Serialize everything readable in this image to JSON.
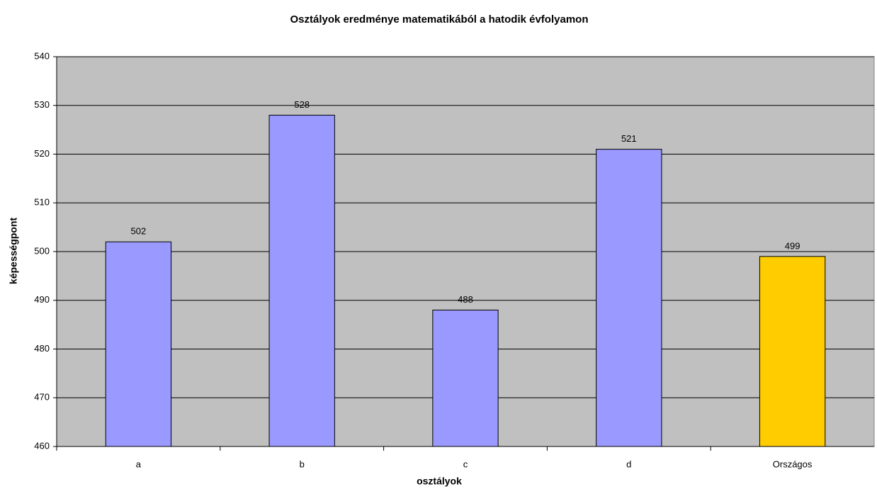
{
  "chart_data": {
    "type": "bar",
    "title": "Osztályok eredménye matematikából a hatodik évfolyamon",
    "x_label": "osztályok",
    "y_label": "képességpont",
    "categories": [
      "a",
      "b",
      "c",
      "d",
      "Országos"
    ],
    "values": [
      502,
      528,
      488,
      521,
      499
    ],
    "colors": [
      "#9999ff",
      "#9999ff",
      "#9999ff",
      "#9999ff",
      "#ffcc00"
    ],
    "ylim": [
      460,
      540
    ],
    "yticks": [
      460,
      470,
      480,
      490,
      500,
      510,
      520,
      530,
      540
    ],
    "grid": true
  }
}
